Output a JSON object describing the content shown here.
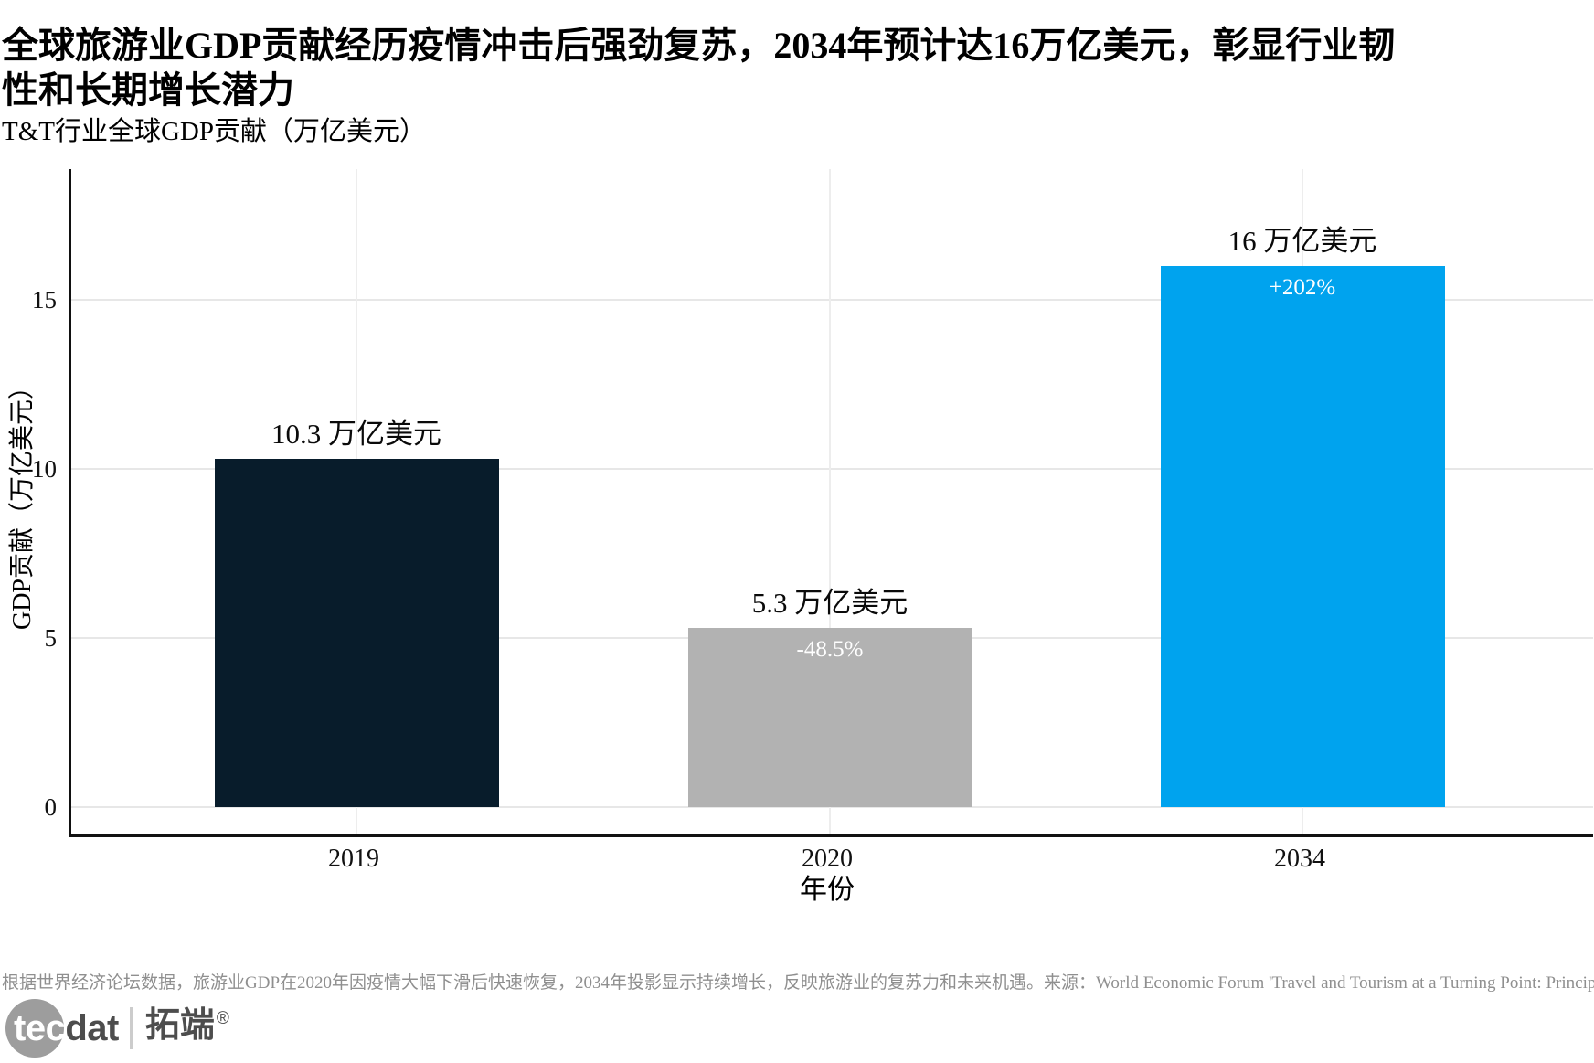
{
  "page": {
    "title": "全球旅游业GDP贡献经历疫情冲击后强劲复苏，2034年预计达16万亿美元，彰显行业韧性和长期增长潜力",
    "subtitle": "T&T行业全球GDP贡献（万亿美元）",
    "footnote": "根据世界经济论坛数据，旅游业GDP在2020年因疫情大幅下滑后快速恢复，2034年投影显示持续增长，反映旅游业的复苏力和未来机遇。来源：World Economic Forum 'Travel and Tourism at a Turning Point: Principles for Transformative Growth'"
  },
  "chart_data": {
    "type": "bar",
    "title": "T&T行业全球GDP贡献（万亿美元）",
    "xlabel": "年份",
    "ylabel": "GDP贡献（万亿美元）",
    "categories": [
      "2019",
      "2020",
      "2034"
    ],
    "values": [
      10.3,
      5.3,
      16
    ],
    "bar_value_labels": [
      "10.3 万亿美元",
      "5.3 万亿美元",
      "16 万亿美元"
    ],
    "bar_inner_labels": [
      "",
      "-48.5%",
      "+202%"
    ],
    "bar_colors": [
      "#081c2b",
      "#b2b2b2",
      "#00a3ee"
    ],
    "yticks": [
      0,
      5,
      10,
      15
    ],
    "ylim": [
      0,
      18.9
    ],
    "grid": true,
    "legend_position": "none"
  },
  "logo": {
    "tec": "tec",
    "dat": "dat",
    "cjk": "拓端",
    "reg": "®"
  },
  "colors": {
    "bar_2019": "#081c2b",
    "bar_2020": "#b2b2b2",
    "bar_2034": "#00a3ee",
    "gridline": "#e7e7e7",
    "axis": "#111111",
    "footnote_text": "#8f8f8f",
    "logo_circle": "#9d9d9d",
    "logo_text": "#4d4d4d"
  }
}
